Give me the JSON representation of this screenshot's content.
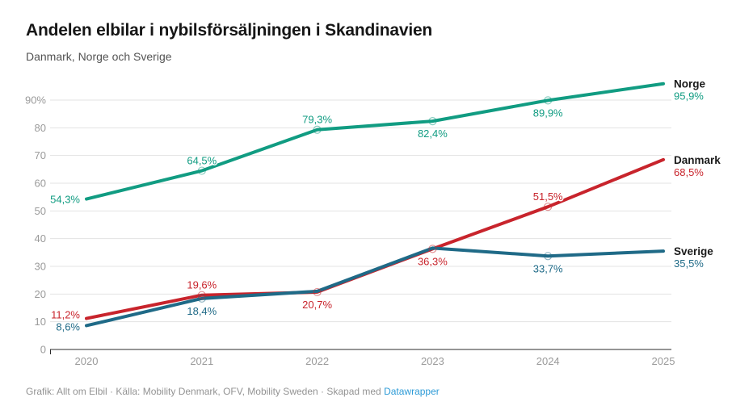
{
  "header": {
    "title": "Andelen elbilar i nybilsförsäljningen i Skandinavien",
    "subtitle": "Danmark, Norge och Sverige"
  },
  "footer": {
    "text": "Grafik: Allt om Elbil · Källa: Mobility Denmark, OFV, Mobility Sweden · Skapad med",
    "link_label": "Datawrapper",
    "link_color": "#2d9bd7"
  },
  "chart_data": {
    "type": "line",
    "title": "Andelen elbilar i nybilsförsäljningen i Skandinavien",
    "subtitle": "Danmark, Norge och Sverige",
    "x_categories": [
      "2020",
      "2021",
      "2022",
      "2023",
      "2024",
      "2025"
    ],
    "ylim": [
      0,
      100
    ],
    "grid": true,
    "legend_position": "end-of-line-right",
    "yticks": [
      {
        "value": 0,
        "label": "0"
      },
      {
        "value": 10,
        "label": "10"
      },
      {
        "value": 20,
        "label": "20"
      },
      {
        "value": 30,
        "label": "30"
      },
      {
        "value": 40,
        "label": "40"
      },
      {
        "value": 50,
        "label": "50"
      },
      {
        "value": 60,
        "label": "60"
      },
      {
        "value": 70,
        "label": "70"
      },
      {
        "value": 80,
        "label": "80"
      },
      {
        "value": 90,
        "label": "90%"
      }
    ],
    "series": [
      {
        "name": "Norge",
        "color": "#119c82",
        "values": [
          54.3,
          64.5,
          79.3,
          82.4,
          89.9,
          95.9
        ],
        "point_labels": [
          "54,3%",
          "64,5%",
          "79,3%",
          "82,4%",
          "89,9%",
          null
        ],
        "label_positions": [
          "left:5",
          "above",
          "above",
          "below",
          "below",
          null
        ],
        "end_value_label": "95,9%"
      },
      {
        "name": "Danmark",
        "color": "#c8242c",
        "values": [
          11.2,
          19.6,
          20.7,
          36.3,
          51.5,
          68.5
        ],
        "point_labels": [
          "11,2%",
          "19,6%",
          "20,7%",
          "36,3%",
          "51,5%",
          null
        ],
        "label_positions": [
          "left:0",
          "above",
          "below",
          "below",
          "above",
          null
        ],
        "end_value_label": "68,5%"
      },
      {
        "name": "Sverige",
        "color": "#1f6a87",
        "values": [
          8.6,
          18.4,
          21.0,
          36.6,
          33.7,
          35.5
        ],
        "point_labels": [
          "8,6%",
          "18,4%",
          null,
          null,
          "33,7%",
          null
        ],
        "label_positions": [
          "left:6",
          "below",
          null,
          null,
          "below",
          null
        ],
        "end_value_label": "35,5%"
      }
    ]
  }
}
